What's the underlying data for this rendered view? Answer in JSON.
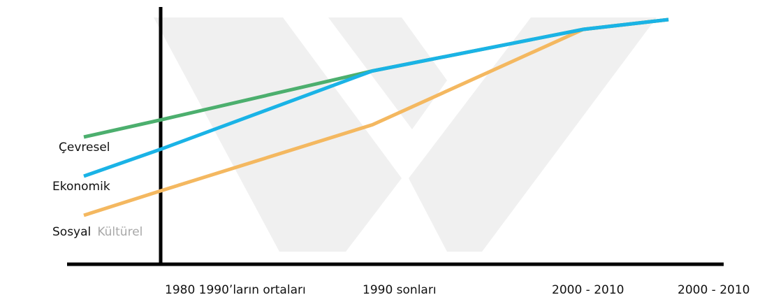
{
  "chart_data": {
    "type": "line",
    "title": "",
    "xlabel": "",
    "ylabel": "",
    "categories": [
      "1980 1990’ların ortaları",
      "1990 sonları",
      "2000 - 2010",
      "2000 - 2010"
    ],
    "ylim": [
      0,
      100
    ],
    "grid": false,
    "legend": "inline-left",
    "series": [
      {
        "name": "Çevresel",
        "color": "#4caf6e",
        "points": [
          {
            "x": -0.35,
            "y": 52
          },
          {
            "x": 0,
            "y": 59
          },
          {
            "x": 1,
            "y": 79
          },
          {
            "x": 2,
            "y": 96
          },
          {
            "x": 2.45,
            "y": 100
          }
        ]
      },
      {
        "name": "Ekonomik",
        "color": "#1ab3e6",
        "points": [
          {
            "x": -0.35,
            "y": 36
          },
          {
            "x": 0,
            "y": 47
          },
          {
            "x": 1,
            "y": 79
          },
          {
            "x": 2,
            "y": 96
          },
          {
            "x": 2.45,
            "y": 100
          }
        ]
      },
      {
        "name_parts": [
          "Sosyal",
          "Kültürel"
        ],
        "color": "#f4b860",
        "points": [
          {
            "x": -0.35,
            "y": 20
          },
          {
            "x": 0,
            "y": 30
          },
          {
            "x": 1,
            "y": 57
          },
          {
            "x": 2,
            "y": 96
          },
          {
            "x": 2.45,
            "y": 100
          }
        ]
      }
    ],
    "colors": {
      "axis": "#000000",
      "watermark": "#f0f0f0",
      "faded_label": "#a8a8a8"
    }
  }
}
